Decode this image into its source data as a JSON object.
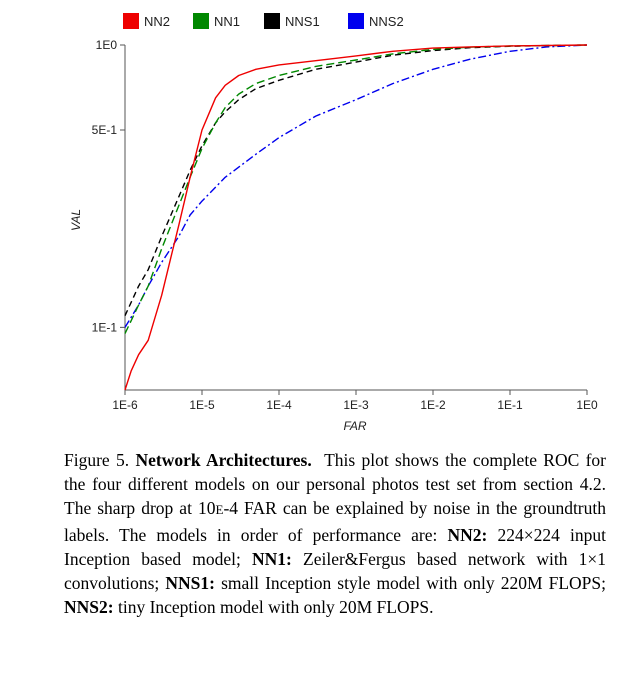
{
  "chart_data": {
    "type": "line",
    "xlabel": "FAR",
    "ylabel": "VAL",
    "x_scale": "log",
    "y_scale": "log",
    "xlim": [
      1e-06,
      1
    ],
    "ylim": [
      0.06,
      1
    ],
    "x_ticks": [
      {
        "value": 1e-06,
        "label": "1E-6"
      },
      {
        "value": 1e-05,
        "label": "1E-5"
      },
      {
        "value": 0.0001,
        "label": "1E-4"
      },
      {
        "value": 0.001,
        "label": "1E-3"
      },
      {
        "value": 0.01,
        "label": "1E-2"
      },
      {
        "value": 0.1,
        "label": "1E-1"
      },
      {
        "value": 1,
        "label": "1E0"
      }
    ],
    "y_ticks": [
      {
        "value": 1,
        "label": "1E0"
      },
      {
        "value": 0.5,
        "label": "5E-1"
      },
      {
        "value": 0.1,
        "label": "1E-1"
      }
    ],
    "grid": false,
    "legend_position": "top",
    "series": [
      {
        "name": "NN2",
        "color": "#ee0000",
        "dash": "solid",
        "points": [
          [
            1e-06,
            0.06
          ],
          [
            1.2e-06,
            0.07
          ],
          [
            1.5e-06,
            0.08
          ],
          [
            2e-06,
            0.09
          ],
          [
            3e-06,
            0.13
          ],
          [
            4e-06,
            0.18
          ],
          [
            5e-06,
            0.23
          ],
          [
            7e-06,
            0.34
          ],
          [
            1e-05,
            0.5
          ],
          [
            1.5e-05,
            0.65
          ],
          [
            2e-05,
            0.72
          ],
          [
            3e-05,
            0.78
          ],
          [
            5e-05,
            0.82
          ],
          [
            0.0001,
            0.85
          ],
          [
            0.0003,
            0.88
          ],
          [
            0.001,
            0.915
          ],
          [
            0.003,
            0.95
          ],
          [
            0.01,
            0.975
          ],
          [
            0.03,
            0.985
          ],
          [
            0.1,
            0.993
          ],
          [
            1,
            1
          ]
        ]
      },
      {
        "name": "NN1",
        "color": "#008800",
        "dash": "8,4",
        "points": [
          [
            1e-06,
            0.095
          ],
          [
            1.5e-06,
            0.12
          ],
          [
            2e-06,
            0.14
          ],
          [
            3e-06,
            0.19
          ],
          [
            5e-06,
            0.27
          ],
          [
            7e-06,
            0.34
          ],
          [
            1e-05,
            0.43
          ],
          [
            1.5e-05,
            0.53
          ],
          [
            2e-05,
            0.6
          ],
          [
            3e-05,
            0.67
          ],
          [
            5e-05,
            0.73
          ],
          [
            0.0001,
            0.78
          ],
          [
            0.0003,
            0.84
          ],
          [
            0.001,
            0.885
          ],
          [
            0.003,
            0.93
          ],
          [
            0.01,
            0.965
          ],
          [
            0.03,
            0.982
          ],
          [
            0.1,
            0.992
          ],
          [
            1,
            1
          ]
        ]
      },
      {
        "name": "NNS1",
        "color": "#000000",
        "dash": "6,4",
        "points": [
          [
            1e-06,
            0.11
          ],
          [
            1.5e-06,
            0.14
          ],
          [
            2e-06,
            0.16
          ],
          [
            3e-06,
            0.21
          ],
          [
            5e-06,
            0.29
          ],
          [
            7e-06,
            0.36
          ],
          [
            1e-05,
            0.44
          ],
          [
            1.5e-05,
            0.53
          ],
          [
            2e-05,
            0.58
          ],
          [
            3e-05,
            0.64
          ],
          [
            5e-05,
            0.7
          ],
          [
            0.0001,
            0.75
          ],
          [
            0.0003,
            0.82
          ],
          [
            0.001,
            0.87
          ],
          [
            0.003,
            0.92
          ],
          [
            0.01,
            0.955
          ],
          [
            0.03,
            0.978
          ],
          [
            0.1,
            0.99
          ],
          [
            1,
            1
          ]
        ]
      },
      {
        "name": "NNS2",
        "color": "#0000ee",
        "dash": "8,3,2,3",
        "points": [
          [
            1e-06,
            0.1
          ],
          [
            1.5e-06,
            0.12
          ],
          [
            2e-06,
            0.14
          ],
          [
            3e-06,
            0.17
          ],
          [
            5e-06,
            0.21
          ],
          [
            7e-06,
            0.25
          ],
          [
            1e-05,
            0.28
          ],
          [
            2e-05,
            0.34
          ],
          [
            5e-05,
            0.41
          ],
          [
            0.0001,
            0.47
          ],
          [
            0.0003,
            0.56
          ],
          [
            0.001,
            0.64
          ],
          [
            0.003,
            0.73
          ],
          [
            0.01,
            0.82
          ],
          [
            0.03,
            0.89
          ],
          [
            0.1,
            0.95
          ],
          [
            0.3,
            0.985
          ],
          [
            1,
            1
          ]
        ]
      }
    ]
  },
  "caption": {
    "label": "Figure 5.",
    "title": "Network Architectures.",
    "body_1": "This plot shows the complete ROC for the four different models on our personal photos test set from section 4.2. The sharp drop at 10",
    "small_caps": "E",
    "body_2": "-4 FAR can be explained by noise in the groundtruth labels. The models in order of performance are:",
    "m1_name": "NN2:",
    "m1_desc": "224×224 input Inception based model;",
    "m2_name": "NN1:",
    "m2_desc": "Zeiler&Fergus based network with 1×1 convolutions;",
    "m3_name": "NNS1:",
    "m3_desc": "small Inception style model with only 220M FLOPS;",
    "m4_name": "NNS2:",
    "m4_desc": "tiny Inception model with only 20M FLOPS."
  }
}
